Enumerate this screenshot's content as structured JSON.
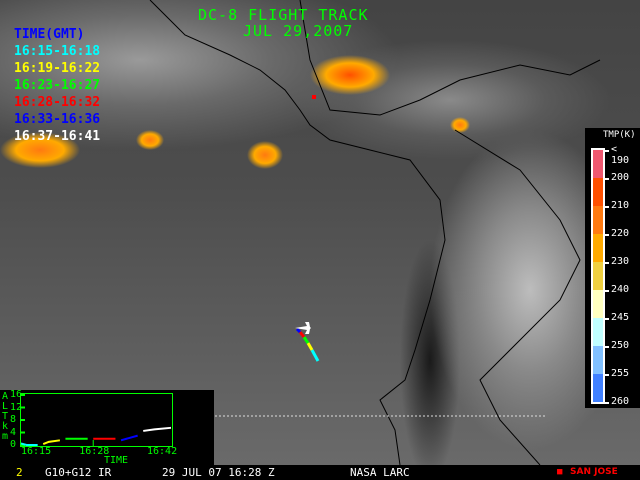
{
  "header": {
    "title": "DC-8 FLIGHT TRACK",
    "date": "JUL 29,2007"
  },
  "time_legend": {
    "heading": "TIME(GMT)",
    "heading_color": "#0000ff",
    "items": [
      {
        "label": "16:15-16:18",
        "color": "#00ffff"
      },
      {
        "label": "16:19-16:22",
        "color": "#ffff00"
      },
      {
        "label": "16:23-16:27",
        "color": "#00ff00"
      },
      {
        "label": "16:28-16:32",
        "color": "#ff0000"
      },
      {
        "label": "16:33-16:36",
        "color": "#0000ff"
      },
      {
        "label": "16:37-16:41",
        "color": "#ffffff"
      }
    ]
  },
  "colorbar": {
    "title": "TMP(K)",
    "labels": [
      "< 190",
      "200",
      "210",
      "220",
      "230",
      "240",
      "245",
      "250",
      "255",
      "260"
    ],
    "colors": [
      "#f05870",
      "#ff5000",
      "#ff7a10",
      "#ffaa00",
      "#f0d040",
      "#ffffc0",
      "#c0ffff",
      "#80c0ff",
      "#4080ff"
    ]
  },
  "altitude_chart": {
    "axis_letters": [
      "A",
      "L",
      "T",
      "k",
      "m"
    ],
    "yticks": [
      "16",
      "12",
      "8",
      "4",
      "0"
    ],
    "xticks": [
      "16:15",
      "16:28",
      "16:42"
    ],
    "xlabel": "TIME",
    "ylim": [
      0,
      16
    ],
    "xlim": [
      "16:15",
      "16:42"
    ],
    "series": [
      {
        "color": "#00ffff",
        "points": [
          [
            "16:15",
            0.5
          ],
          [
            "16:16",
            0
          ],
          [
            "16:18",
            0
          ]
        ]
      },
      {
        "color": "#ffff00",
        "points": [
          [
            "16:19",
            0.3
          ],
          [
            "16:20",
            1
          ],
          [
            "16:22",
            1.5
          ]
        ]
      },
      {
        "color": "#00ff00",
        "points": [
          [
            "16:23",
            2
          ],
          [
            "16:27",
            2
          ]
        ]
      },
      {
        "color": "#ff0000",
        "points": [
          [
            "16:28",
            2
          ],
          [
            "16:32",
            2
          ]
        ]
      },
      {
        "color": "#0000ff",
        "points": [
          [
            "16:33",
            1.5
          ],
          [
            "16:34",
            2
          ],
          [
            "16:36",
            3
          ]
        ]
      },
      {
        "color": "#ffffff",
        "points": [
          [
            "16:37",
            4.5
          ],
          [
            "16:39",
            5
          ],
          [
            "16:42",
            5.5
          ]
        ]
      }
    ]
  },
  "map": {
    "marker_label": "SAN JOSE",
    "marker_color": "#ff0000"
  },
  "footer": {
    "frame": "2",
    "satellite": "G10+G12 IR",
    "datetime": "29 JUL 07 16:28 Z",
    "source": "NASA LARC",
    "legend_marker": "■",
    "legend_label": "SAN JOSE"
  }
}
